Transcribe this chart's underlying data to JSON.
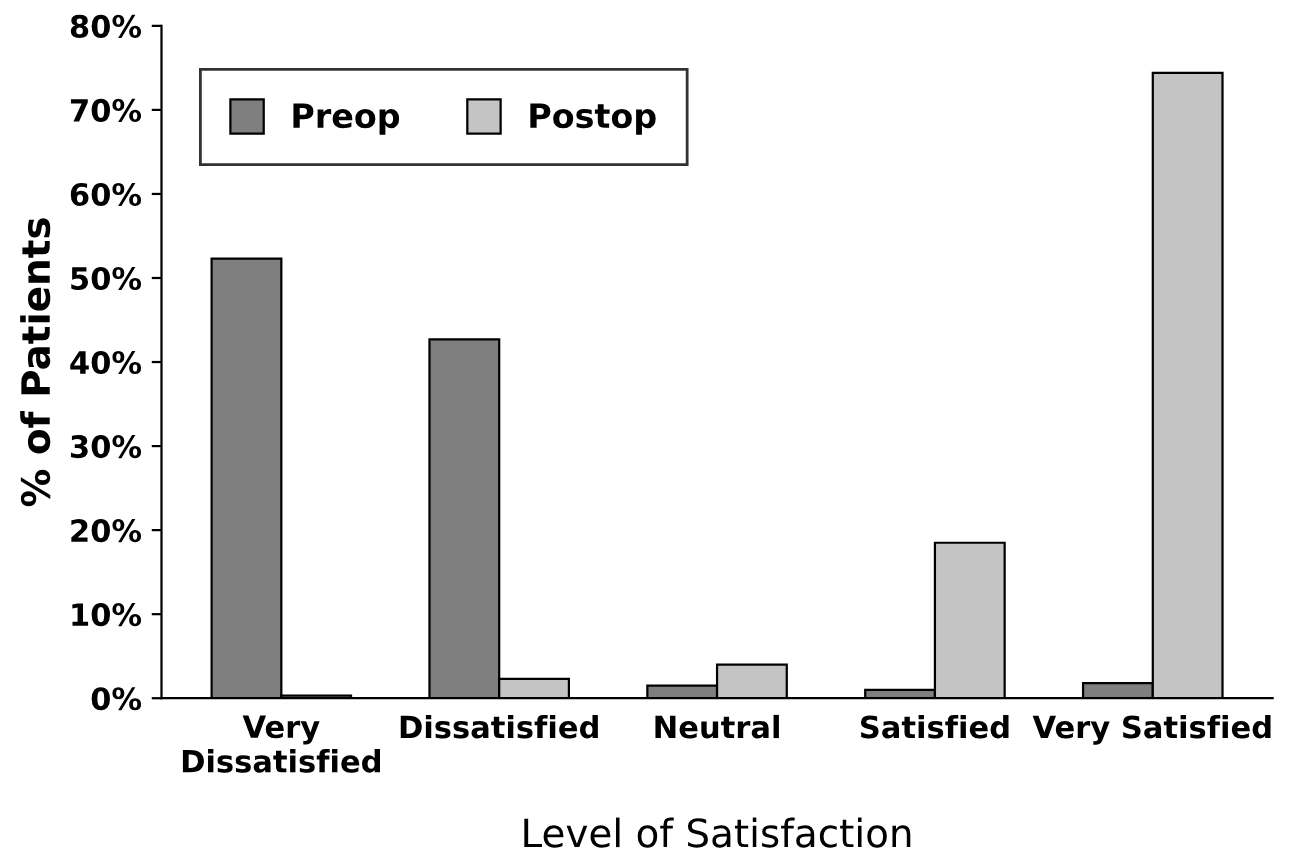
{
  "chart_data": {
    "type": "bar",
    "xlabel": "Level of Satisfaction",
    "ylabel": "% of Patients",
    "categories": [
      "Very\nDissatisfied",
      "Dissatisfied",
      "Neutral",
      "Satisfied",
      "Very Satisfied"
    ],
    "series": [
      {
        "name": "Preop",
        "color": "#7f7f7f",
        "values": [
          52.3,
          42.7,
          1.5,
          1.0,
          1.8
        ]
      },
      {
        "name": "Postop",
        "color": "#c4c4c4",
        "values": [
          0.3,
          2.3,
          4.0,
          18.5,
          74.4
        ]
      }
    ],
    "ylim": [
      0,
      80
    ],
    "yticks": [
      {
        "value": 0,
        "label": "0%"
      },
      {
        "value": 10,
        "label": "10%"
      },
      {
        "value": 20,
        "label": "20%"
      },
      {
        "value": 30,
        "label": "30%"
      },
      {
        "value": 40,
        "label": "40%"
      },
      {
        "value": 50,
        "label": "50%"
      },
      {
        "value": 60,
        "label": "60%"
      },
      {
        "value": 70,
        "label": "70%"
      },
      {
        "value": 80,
        "label": "80%"
      }
    ],
    "grid": false,
    "legend": "top left"
  }
}
